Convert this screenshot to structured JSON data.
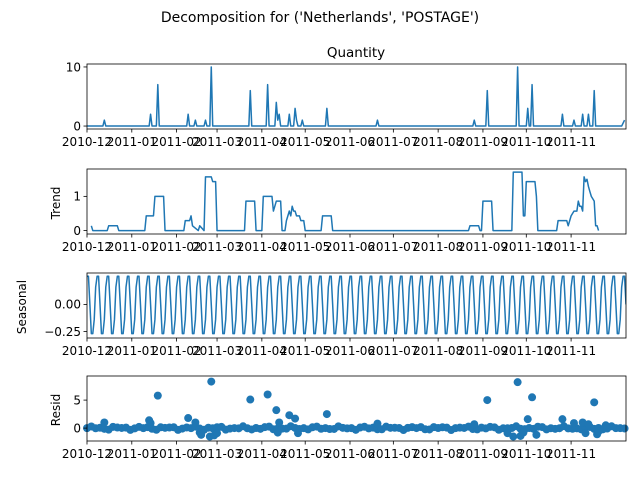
{
  "chart_data": {
    "type": "line",
    "suptitle": "Decomposition for ('Netherlands', 'POSTAGE')",
    "x_start": "2010-12-01",
    "x_end": "2011-12-09",
    "x_tick_labels": [
      "2010-12",
      "2011-01",
      "2011-02",
      "2011-03",
      "2011-04",
      "2011-05",
      "2011-06",
      "2011-07",
      "2011-08",
      "2011-09",
      "2011-10",
      "2011-11"
    ],
    "x_tick_dates": [
      "2010-12-01",
      "2011-01-01",
      "2011-02-01",
      "2011-03-01",
      "2011-04-01",
      "2011-05-01",
      "2011-06-01",
      "2011-07-01",
      "2011-08-01",
      "2011-09-01",
      "2011-10-01",
      "2011-11-01"
    ],
    "color": "#1f77b4",
    "panels": [
      {
        "id": "observed",
        "title": "Quantity",
        "ylabel": "",
        "style": "line",
        "ylim": [
          -0.5,
          10.5
        ],
        "yticks": [
          0,
          10
        ],
        "ytick_labels": [
          "0",
          "10"
        ],
        "points": [
          [
            "2010-12-01",
            0
          ],
          [
            "2010-12-12",
            0
          ],
          [
            "2010-12-13",
            1
          ],
          [
            "2010-12-14",
            0
          ],
          [
            "2011-01-13",
            0
          ],
          [
            "2011-01-14",
            2
          ],
          [
            "2011-01-15",
            0
          ],
          [
            "2011-01-18",
            0
          ],
          [
            "2011-01-19",
            7
          ],
          [
            "2011-01-20",
            0
          ],
          [
            "2011-02-08",
            0
          ],
          [
            "2011-02-09",
            2
          ],
          [
            "2011-02-10",
            0
          ],
          [
            "2011-02-13",
            0
          ],
          [
            "2011-02-14",
            1
          ],
          [
            "2011-02-15",
            0
          ],
          [
            "2011-02-20",
            0
          ],
          [
            "2011-02-21",
            1
          ],
          [
            "2011-02-22",
            0
          ],
          [
            "2011-02-24",
            0
          ],
          [
            "2011-02-25",
            10
          ],
          [
            "2011-02-26",
            0
          ],
          [
            "2011-03-23",
            0
          ],
          [
            "2011-03-24",
            6
          ],
          [
            "2011-03-25",
            0
          ],
          [
            "2011-04-04",
            0
          ],
          [
            "2011-04-05",
            7
          ],
          [
            "2011-04-06",
            0
          ],
          [
            "2011-04-10",
            0
          ],
          [
            "2011-04-11",
            4
          ],
          [
            "2011-04-12",
            1
          ],
          [
            "2011-04-13",
            2
          ],
          [
            "2011-04-14",
            0
          ],
          [
            "2011-04-19",
            0
          ],
          [
            "2011-04-20",
            2
          ],
          [
            "2011-04-21",
            0
          ],
          [
            "2011-04-23",
            0
          ],
          [
            "2011-04-24",
            3
          ],
          [
            "2011-04-25",
            1
          ],
          [
            "2011-04-26",
            0
          ],
          [
            "2011-04-28",
            0
          ],
          [
            "2011-04-29",
            1
          ],
          [
            "2011-04-30",
            0
          ],
          [
            "2011-05-15",
            0
          ],
          [
            "2011-05-16",
            3
          ],
          [
            "2011-05-17",
            0
          ],
          [
            "2011-06-19",
            0
          ],
          [
            "2011-06-20",
            1
          ],
          [
            "2011-06-21",
            0
          ],
          [
            "2011-08-25",
            0
          ],
          [
            "2011-08-26",
            1
          ],
          [
            "2011-08-27",
            0
          ],
          [
            "2011-09-03",
            0
          ],
          [
            "2011-09-04",
            6
          ],
          [
            "2011-09-05",
            0
          ],
          [
            "2011-09-24",
            0
          ],
          [
            "2011-09-25",
            10
          ],
          [
            "2011-09-26",
            0
          ],
          [
            "2011-10-01",
            0
          ],
          [
            "2011-10-02",
            3
          ],
          [
            "2011-10-03",
            0
          ],
          [
            "2011-10-04",
            0
          ],
          [
            "2011-10-05",
            7
          ],
          [
            "2011-10-06",
            0
          ],
          [
            "2011-10-25",
            0
          ],
          [
            "2011-10-26",
            2
          ],
          [
            "2011-10-27",
            0
          ],
          [
            "2011-11-02",
            0
          ],
          [
            "2011-11-03",
            1
          ],
          [
            "2011-11-04",
            0
          ],
          [
            "2011-11-08",
            0
          ],
          [
            "2011-11-09",
            2
          ],
          [
            "2011-11-10",
            0
          ],
          [
            "2011-11-12",
            0
          ],
          [
            "2011-11-13",
            2
          ],
          [
            "2011-11-14",
            0
          ],
          [
            "2011-11-16",
            0
          ],
          [
            "2011-11-17",
            6
          ],
          [
            "2011-11-18",
            0
          ],
          [
            "2011-12-06",
            0
          ],
          [
            "2011-12-08",
            1
          ]
        ]
      },
      {
        "id": "trend",
        "title": "",
        "ylabel": "Trend",
        "style": "line",
        "ylim": [
          -0.1,
          1.8
        ],
        "yticks": [
          0,
          1
        ],
        "ytick_labels": [
          "0",
          "1"
        ],
        "points": [
          [
            "2010-12-04",
            0.14
          ],
          [
            "2010-12-05",
            0
          ],
          [
            "2010-12-15",
            0
          ],
          [
            "2010-12-16",
            0.14
          ],
          [
            "2010-12-22",
            0.14
          ],
          [
            "2010-12-23",
            0
          ],
          [
            "2011-01-10",
            0
          ],
          [
            "2011-01-11",
            0.43
          ],
          [
            "2011-01-16",
            0.43
          ],
          [
            "2011-01-17",
            1
          ],
          [
            "2011-01-23",
            1
          ],
          [
            "2011-01-24",
            0
          ],
          [
            "2011-02-06",
            0
          ],
          [
            "2011-02-07",
            0.29
          ],
          [
            "2011-02-10",
            0.29
          ],
          [
            "2011-02-11",
            0.43
          ],
          [
            "2011-02-12",
            0.14
          ],
          [
            "2011-02-16",
            0
          ],
          [
            "2011-02-17",
            0.14
          ],
          [
            "2011-02-20",
            0
          ],
          [
            "2011-02-21",
            1.57
          ],
          [
            "2011-02-25",
            1.57
          ],
          [
            "2011-02-26",
            1.43
          ],
          [
            "2011-02-28",
            1.43
          ],
          [
            "2011-03-01",
            0
          ],
          [
            "2011-03-20",
            0
          ],
          [
            "2011-03-21",
            0.86
          ],
          [
            "2011-03-27",
            0.86
          ],
          [
            "2011-03-28",
            0
          ],
          [
            "2011-04-01",
            0
          ],
          [
            "2011-04-02",
            1
          ],
          [
            "2011-04-08",
            1
          ],
          [
            "2011-04-09",
            0.57
          ],
          [
            "2011-04-11",
            0.86
          ],
          [
            "2011-04-14",
            0.86
          ],
          [
            "2011-04-15",
            0
          ],
          [
            "2011-04-17",
            0
          ],
          [
            "2011-04-18",
            0.29
          ],
          [
            "2011-04-19",
            0.43
          ],
          [
            "2011-04-20",
            0.57
          ],
          [
            "2011-04-21",
            0.43
          ],
          [
            "2011-04-22",
            0.71
          ],
          [
            "2011-04-23",
            0.57
          ],
          [
            "2011-04-24",
            0.57
          ],
          [
            "2011-04-25",
            0.43
          ],
          [
            "2011-04-27",
            0.43
          ],
          [
            "2011-04-28",
            0.29
          ],
          [
            "2011-04-30",
            0.29
          ],
          [
            "2011-05-01",
            0
          ],
          [
            "2011-05-12",
            0
          ],
          [
            "2011-05-13",
            0.43
          ],
          [
            "2011-05-19",
            0.43
          ],
          [
            "2011-05-20",
            0
          ],
          [
            "2011-08-22",
            0
          ],
          [
            "2011-08-23",
            0.14
          ],
          [
            "2011-08-29",
            0.14
          ],
          [
            "2011-08-30",
            0
          ],
          [
            "2011-08-31",
            0
          ],
          [
            "2011-09-01",
            0.86
          ],
          [
            "2011-09-07",
            0.86
          ],
          [
            "2011-09-08",
            0
          ],
          [
            "2011-09-21",
            0
          ],
          [
            "2011-09-22",
            1.71
          ],
          [
            "2011-09-28",
            1.71
          ],
          [
            "2011-09-29",
            0.43
          ],
          [
            "2011-09-30",
            0.43
          ],
          [
            "2011-10-01",
            1.43
          ],
          [
            "2011-10-07",
            1.43
          ],
          [
            "2011-10-08",
            1.0
          ],
          [
            "2011-10-09",
            0
          ],
          [
            "2011-10-22",
            0
          ],
          [
            "2011-10-23",
            0.29
          ],
          [
            "2011-10-29",
            0.29
          ],
          [
            "2011-10-30",
            0.14
          ],
          [
            "2011-11-01",
            0.43
          ],
          [
            "2011-11-03",
            0.57
          ],
          [
            "2011-11-05",
            0.57
          ],
          [
            "2011-11-06",
            0.86
          ],
          [
            "2011-11-07",
            0.71
          ],
          [
            "2011-11-08",
            0.71
          ],
          [
            "2011-11-09",
            0.57
          ],
          [
            "2011-11-10",
            1.57
          ],
          [
            "2011-11-11",
            1.43
          ],
          [
            "2011-11-12",
            1.5
          ],
          [
            "2011-11-13",
            1.29
          ],
          [
            "2011-11-14",
            1.14
          ],
          [
            "2011-11-15",
            1.0
          ],
          [
            "2011-11-17",
            0.86
          ],
          [
            "2011-11-18",
            0.14
          ],
          [
            "2011-11-19",
            0.14
          ],
          [
            "2011-11-20",
            0
          ]
        ]
      },
      {
        "id": "seasonal",
        "title": "",
        "ylabel": "Seasonal",
        "style": "seasonal",
        "ylim": [
          -0.31,
          0.29
        ],
        "yticks": [
          0,
          -0.25
        ],
        "ytick_labels": [
          "0.00",
          "−0.25"
        ],
        "period_days": 7,
        "pattern": [
          0.26,
          0.26,
          0.0,
          -0.27,
          -0.27,
          -0.14,
          0.16
        ]
      },
      {
        "id": "resid",
        "title": "",
        "ylabel": "Resid",
        "style": "scatter",
        "ylim": [
          -2.3,
          9.3
        ],
        "yticks": [
          0,
          5
        ],
        "ytick_labels": [
          "0",
          "5"
        ],
        "baseline_noise": {
          "start": "2010-12-01",
          "end": "2011-12-09",
          "step_days": 3,
          "amplitude": 0.35
        },
        "points": [
          [
            "2010-12-13",
            1.0
          ],
          [
            "2011-01-13",
            1.4
          ],
          [
            "2011-01-14",
            0.9
          ],
          [
            "2011-01-19",
            5.8
          ],
          [
            "2011-02-09",
            1.8
          ],
          [
            "2011-02-14",
            1.0
          ],
          [
            "2011-02-17",
            -0.8
          ],
          [
            "2011-02-18",
            -1.2
          ],
          [
            "2011-02-24",
            -1.5
          ],
          [
            "2011-02-25",
            8.3
          ],
          [
            "2011-02-27",
            -1.3
          ],
          [
            "2011-03-01",
            -0.9
          ],
          [
            "2011-03-24",
            5.1
          ],
          [
            "2011-04-05",
            6.0
          ],
          [
            "2011-04-11",
            3.2
          ],
          [
            "2011-04-12",
            -0.8
          ],
          [
            "2011-04-13",
            1.0
          ],
          [
            "2011-04-20",
            2.3
          ],
          [
            "2011-04-24",
            1.7
          ],
          [
            "2011-04-26",
            -0.9
          ],
          [
            "2011-05-16",
            2.5
          ],
          [
            "2011-06-20",
            0.8
          ],
          [
            "2011-08-26",
            0.7
          ],
          [
            "2011-09-04",
            5.0
          ],
          [
            "2011-09-18",
            -0.9
          ],
          [
            "2011-09-22",
            -1.5
          ],
          [
            "2011-09-25",
            8.2
          ],
          [
            "2011-09-27",
            -1.4
          ],
          [
            "2011-09-29",
            -0.8
          ],
          [
            "2011-10-02",
            1.6
          ],
          [
            "2011-10-05",
            5.5
          ],
          [
            "2011-10-08",
            -1.2
          ],
          [
            "2011-10-26",
            1.6
          ],
          [
            "2011-11-03",
            0.9
          ],
          [
            "2011-11-09",
            1.0
          ],
          [
            "2011-11-11",
            -0.9
          ],
          [
            "2011-11-13",
            0.7
          ],
          [
            "2011-11-17",
            4.6
          ],
          [
            "2011-11-19",
            -1.1
          ],
          [
            "2011-11-20",
            -0.6
          ],
          [
            "2011-11-25",
            0.5
          ]
        ]
      }
    ]
  }
}
